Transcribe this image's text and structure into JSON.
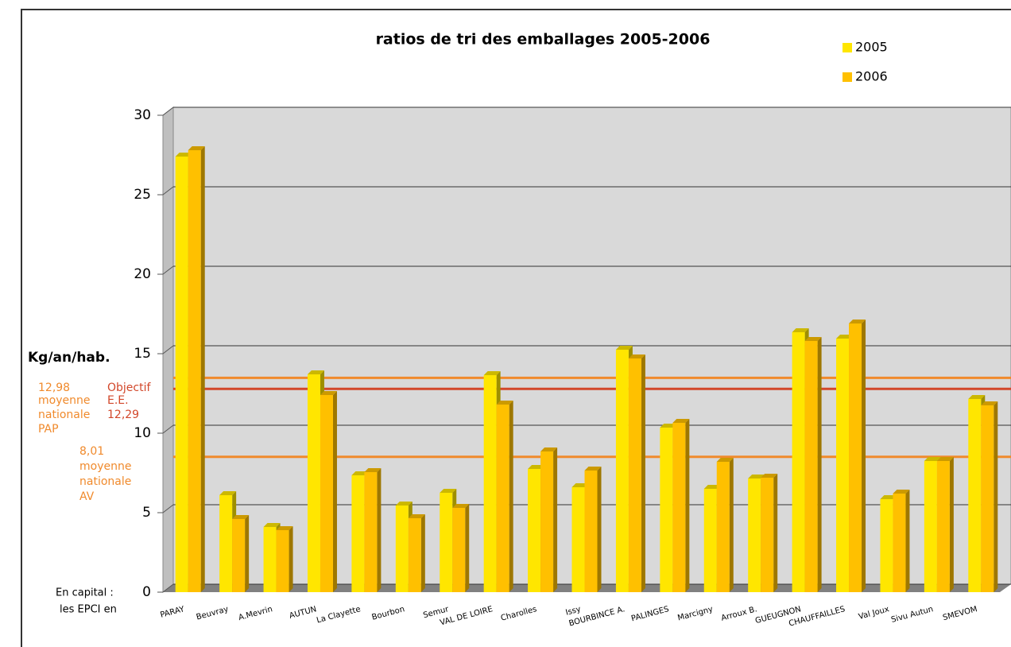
{
  "chart_data": {
    "type": "bar3d",
    "title": "ratios de tri des emballages 2005-2006",
    "ylabel": "Kg/an/hab.",
    "footnote": [
      "En capital :",
      "les EPCI en"
    ],
    "categories": [
      "PARAY",
      "Beuvray",
      "A.Mevrin",
      "AUTUN",
      "La Clayette",
      "Bourbon",
      "Semur",
      "VAL DE LOIRE",
      "Charolles",
      "Issy",
      "BOURBINCE A.",
      "PALINGES",
      "Marcigny",
      "Arroux B.",
      "GUEUGNON",
      "CHAUFFAILLES",
      "Val Joux",
      "Sivu Autun",
      "SMEVOM"
    ],
    "series": [
      {
        "name": "2005",
        "color": "#ffe600",
        "values": [
          27.4,
          6.1,
          4.1,
          13.7,
          7.35,
          5.45,
          6.25,
          13.65,
          7.75,
          6.6,
          15.25,
          10.35,
          6.5,
          7.15,
          16.35,
          15.95,
          5.85,
          8.25,
          12.15
        ]
      },
      {
        "name": "2006",
        "color": "#ffc000",
        "values": [
          27.8,
          4.6,
          3.9,
          12.4,
          7.55,
          4.65,
          5.3,
          11.8,
          8.85,
          7.65,
          14.7,
          10.65,
          8.2,
          7.2,
          15.8,
          16.9,
          6.2,
          8.25,
          11.75
        ]
      }
    ],
    "reference_lines": [
      {
        "value": 12.98,
        "label": "12,98",
        "notes": [
          "moyenne",
          "nationale",
          "PAP"
        ],
        "color": "#f08a2c"
      },
      {
        "value": 12.29,
        "label": "12,29",
        "notes": [
          "Objectif",
          "E.E."
        ],
        "color": "#d2472a"
      },
      {
        "value": 8.01,
        "label": "8,01",
        "notes": [
          "moyenne",
          "nationale",
          "AV"
        ],
        "color": "#f08a2c"
      }
    ],
    "ylim": [
      0,
      30
    ],
    "yticks": [
      0,
      5,
      10,
      15,
      20,
      25,
      30
    ],
    "grid": true
  }
}
